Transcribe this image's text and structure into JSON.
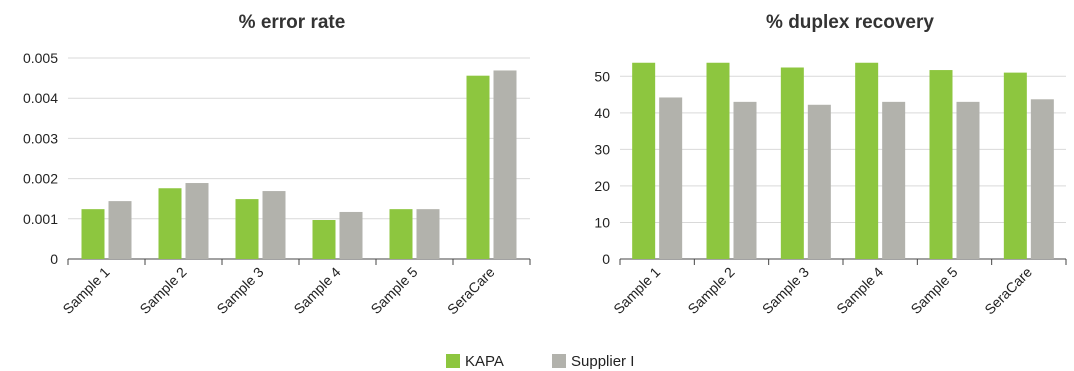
{
  "chart_data": [
    {
      "type": "bar",
      "title": "% error rate",
      "xlabel": "",
      "ylabel": "",
      "categories": [
        "Sample 1",
        "Sample 2",
        "Sample 3",
        "Sample 4",
        "Sample 5",
        "SeraCare"
      ],
      "series": [
        {
          "name": "KAPA",
          "values": [
            0.00124,
            0.00176,
            0.00149,
            0.00097,
            0.00124,
            0.00456
          ]
        },
        {
          "name": "Supplier I",
          "values": [
            0.00144,
            0.00189,
            0.00169,
            0.00117,
            0.00124,
            0.00469
          ]
        }
      ],
      "ylim": [
        0,
        0.005
      ],
      "yticks": [
        "0",
        "0.001",
        "0.002",
        "0.003",
        "0.004",
        "0.005"
      ],
      "grid": true
    },
    {
      "type": "bar",
      "title": "% duplex recovery",
      "xlabel": "",
      "ylabel": "",
      "categories": [
        "Sample 1",
        "Sample 2",
        "Sample 3",
        "Sample 4",
        "Sample 5",
        "SeraCare"
      ],
      "series": [
        {
          "name": "KAPA",
          "values": [
            53.7,
            53.7,
            52.4,
            53.7,
            51.7,
            51.0
          ]
        },
        {
          "name": "Supplier I",
          "values": [
            44.2,
            43.0,
            42.2,
            43.0,
            43.0,
            43.7
          ]
        }
      ],
      "ylim": [
        0,
        55
      ],
      "yticks": [
        "0",
        "10",
        "20",
        "30",
        "40",
        "50"
      ],
      "grid": true
    }
  ],
  "legend": {
    "position": "bottom-center",
    "items": [
      {
        "label": "KAPA",
        "color": "#8dc63f"
      },
      {
        "label": "Supplier I",
        "color": "#b2b2ac"
      }
    ]
  },
  "colors": {
    "kapa": "#8dc63f",
    "supplier": "#b2b2ac",
    "grid": "#d9d9d9",
    "axis": "#444444"
  }
}
